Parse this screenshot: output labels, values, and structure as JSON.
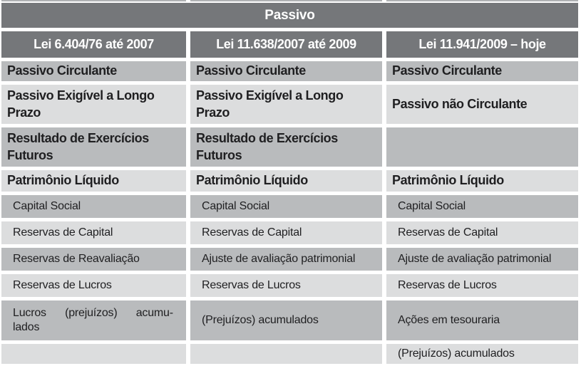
{
  "table": {
    "title": "Passivo",
    "columns": [
      "Lei 6.404/76 até 2007",
      "Lei 11.638/2007 até 2009",
      "Lei 11.941/2009 – hoje"
    ],
    "rows": [
      {
        "bold": true,
        "cells": [
          "Passivo Circulante",
          "Passivo Circulante",
          "Passivo Circulante"
        ]
      },
      {
        "bold": true,
        "cells": [
          "Passivo Exigível a Longo Prazo",
          "Passivo Exigível a Longo Prazo",
          "Passivo não Circulante"
        ]
      },
      {
        "bold": true,
        "cells": [
          "Resultado de Exercícios Futuros",
          "Resultado de Exercícios Futuros",
          ""
        ]
      },
      {
        "bold": true,
        "cells": [
          "Patrimônio Líquido",
          "Patrimônio Líquido",
          "Patrimônio Líquido"
        ]
      },
      {
        "bold": false,
        "cells": [
          "Capital Social",
          "Capital Social",
          "Capital Social"
        ]
      },
      {
        "bold": false,
        "cells": [
          "Reservas de Capital",
          "Reservas de Capital",
          "Reservas de Capital"
        ]
      },
      {
        "bold": false,
        "cells": [
          "Reservas de Reavaliação",
          "Ajuste de avaliação patrimonial",
          "Ajuste de avaliação patrimonial"
        ]
      },
      {
        "bold": false,
        "cells": [
          "Reservas de Lucros",
          "Reservas de Lucros",
          "Reservas de Lucros"
        ]
      },
      {
        "bold": false,
        "cells": [
          "Lucros (prejuízos) acumu-\nlados",
          "(Prejuízos) acumulados",
          "Ações em tesouraria"
        ]
      },
      {
        "bold": false,
        "cells": [
          "",
          "",
          "(Prejuízos) acumulados"
        ]
      }
    ],
    "colors": {
      "header-bg": "#75777a",
      "header-text": "#ffffff",
      "row-mid": "#b9bbbd",
      "row-light": "#dcddde",
      "body-text": "#1f1f21",
      "gutter": "#ffffff"
    }
  }
}
